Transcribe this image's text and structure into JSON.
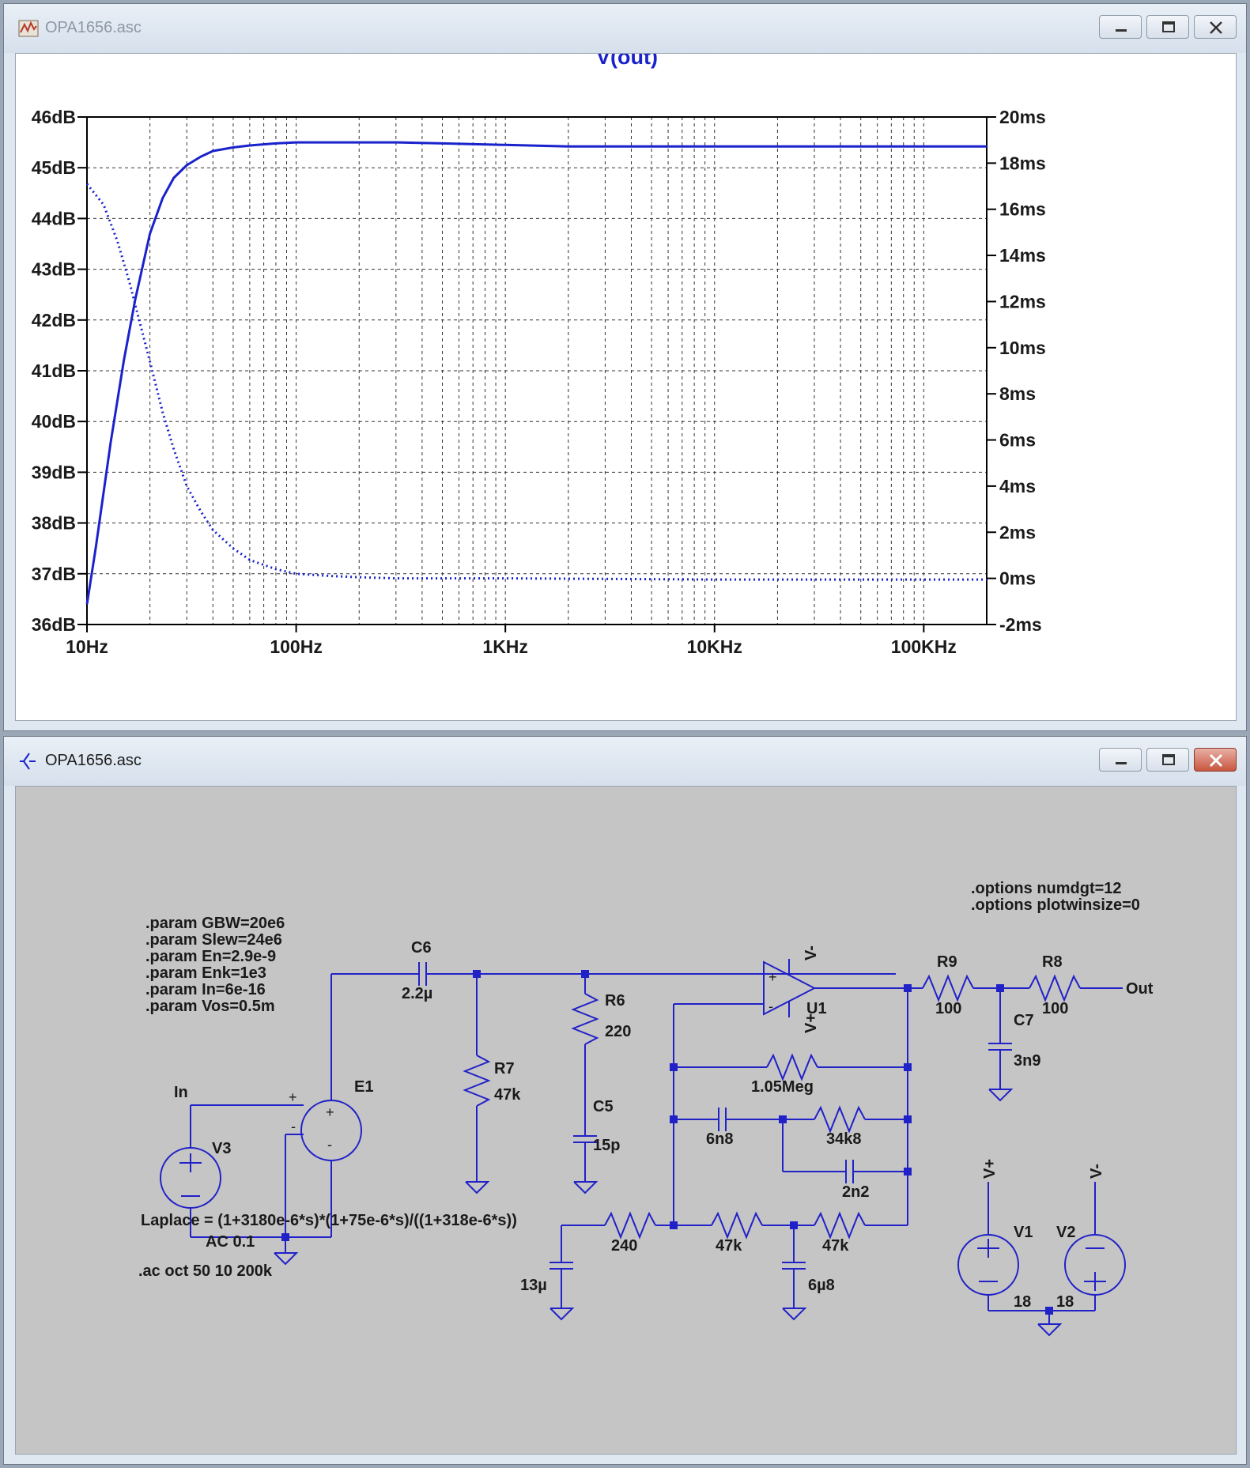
{
  "plot_window": {
    "title": "OPA1656.asc",
    "trace_name": "V(out)"
  },
  "schematic_window": {
    "title": "OPA1656.asc"
  },
  "colors": {
    "trace": "#1a22cc",
    "wire": "#2121c8",
    "schematic_bg": "#c5c5c5",
    "plot_bg": "#ffffff",
    "text": "#1a1a1a"
  },
  "chart_data": {
    "type": "line",
    "title": "V(out)",
    "x_scale": "log",
    "xlim": [
      10,
      200000
    ],
    "x_ticks": [
      "10Hz",
      "100Hz",
      "1KHz",
      "10KHz",
      "100KHz"
    ],
    "left_axis": {
      "ylim": [
        36,
        46
      ],
      "ticks": [
        "36dB",
        "37dB",
        "38dB",
        "39dB",
        "40dB",
        "41dB",
        "42dB",
        "43dB",
        "44dB",
        "45dB",
        "46dB"
      ]
    },
    "right_axis": {
      "ylim": [
        -2,
        20
      ],
      "ticks": [
        "-2ms",
        "0ms",
        "2ms",
        "4ms",
        "6ms",
        "8ms",
        "10ms",
        "12ms",
        "14ms",
        "16ms",
        "18ms",
        "20ms"
      ]
    },
    "grid": true,
    "series": [
      {
        "style": "solid",
        "axis": "left",
        "x": [
          10,
          11,
          12,
          13,
          15,
          17,
          20,
          23,
          26,
          30,
          35,
          40,
          50,
          60,
          80,
          100,
          150,
          200,
          300,
          500,
          1000,
          2000,
          5000,
          10000,
          50000,
          200000
        ],
        "y": [
          36.4,
          37.5,
          38.6,
          39.6,
          41.2,
          42.4,
          43.7,
          44.4,
          44.8,
          45.05,
          45.22,
          45.33,
          45.4,
          45.44,
          45.48,
          45.5,
          45.5,
          45.5,
          45.5,
          45.48,
          45.45,
          45.42,
          45.42,
          45.42,
          45.42,
          45.42
        ]
      },
      {
        "style": "dotted",
        "axis": "right",
        "x": [
          10,
          12,
          14,
          16,
          18,
          20,
          23,
          26,
          30,
          35,
          40,
          50,
          60,
          80,
          100,
          150,
          200,
          300,
          500,
          1000,
          10000,
          200000
        ],
        "y": [
          17.1,
          16.2,
          14.6,
          12.8,
          11.0,
          9.4,
          7.2,
          5.6,
          4.0,
          2.9,
          2.1,
          1.3,
          0.8,
          0.4,
          0.2,
          0.1,
          0.05,
          0.0,
          0.0,
          0.0,
          -0.05,
          -0.05
        ]
      }
    ]
  },
  "schematic": {
    "directives": {
      "params": [
        ".param GBW=20e6",
        ".param Slew=24e6",
        ".param En=2.9e-9",
        ".param Enk=1e3",
        ".param In=6e-16",
        ".param Vos=0.5m"
      ],
      "options": [
        ".options numdgt=12",
        ".options plotwinsize=0"
      ],
      "laplace": "Laplace = (1+3180e-6*s)*(1+75e-6*s)/((1+318e-6*s))",
      "ac": ".ac oct 50 10 200k"
    },
    "nets": {
      "in": "In",
      "out": "Out",
      "vplus": "V+",
      "vminus": "V-"
    },
    "components": {
      "V3": "V3",
      "V3_value": "AC 0.1",
      "E1": "E1",
      "C6": "C6",
      "C6_value": "2.2µ",
      "R7": "R7",
      "R7_value": "47k",
      "R6": "R6",
      "R6_value": "220",
      "C5": "C5",
      "C5_value": "15p",
      "U1": "U1",
      "R_fb1_value": "1.05Meg",
      "C_fb_value": "6n8",
      "R_fb2_value": "34k8",
      "C_fb2_value": "2n2",
      "R_240_value": "240",
      "C_13u_value": "13µ",
      "R_47k_a_value": "47k",
      "R_47k_b_value": "47k",
      "C_6u8_value": "6µ8",
      "R9": "R9",
      "R9_value": "100",
      "R8": "R8",
      "R8_value": "100",
      "C7": "C7",
      "C7_value": "3n9",
      "V1": "V1",
      "V1_value": "18",
      "V2": "V2",
      "V2_value": "18",
      "plus_sign": "+",
      "minus_sign": "-"
    }
  }
}
